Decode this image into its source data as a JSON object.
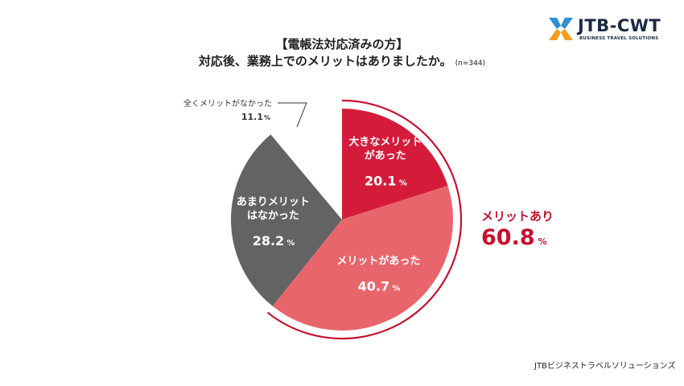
{
  "header": {
    "title_line1": "【電帳法対応済みの方】",
    "title_line2": "対応後、業務上でのメリットはありましたか。",
    "sample": "(n=344)"
  },
  "logo": {
    "text": "JTB-CWT",
    "subtext": "BUSINESS TRAVEL SOLUTIONS",
    "colors": {
      "blue": "#2e8fd6",
      "orange": "#f39c1f",
      "navy": "#1a2a44"
    }
  },
  "merit": {
    "label": "メリットあり",
    "value": "60.8",
    "unit": "%"
  },
  "footer": "JTBビジネストラベルソリューションズ",
  "chart_data": {
    "type": "pie",
    "start_angle_deg": 0,
    "direction": "clockwise",
    "unit": "%",
    "slices": [
      {
        "label_lines": [
          "大きなメリット",
          "があった"
        ],
        "value": 20.1,
        "color": "#d41c3a",
        "label_color": "#ffffff"
      },
      {
        "label_lines": [
          "メリットがあった"
        ],
        "value": 40.7,
        "color": "#e8666b",
        "label_color": "#ffffff"
      },
      {
        "label_lines": [
          "あまりメリット",
          "はなかった"
        ],
        "value": 28.2,
        "color": "#636363",
        "label_color": "#ffffff"
      },
      {
        "label_lines": [
          "全くメリットがなかった"
        ],
        "value": 11.1,
        "color": "#ffffff",
        "label_color": "#333333"
      }
    ]
  }
}
